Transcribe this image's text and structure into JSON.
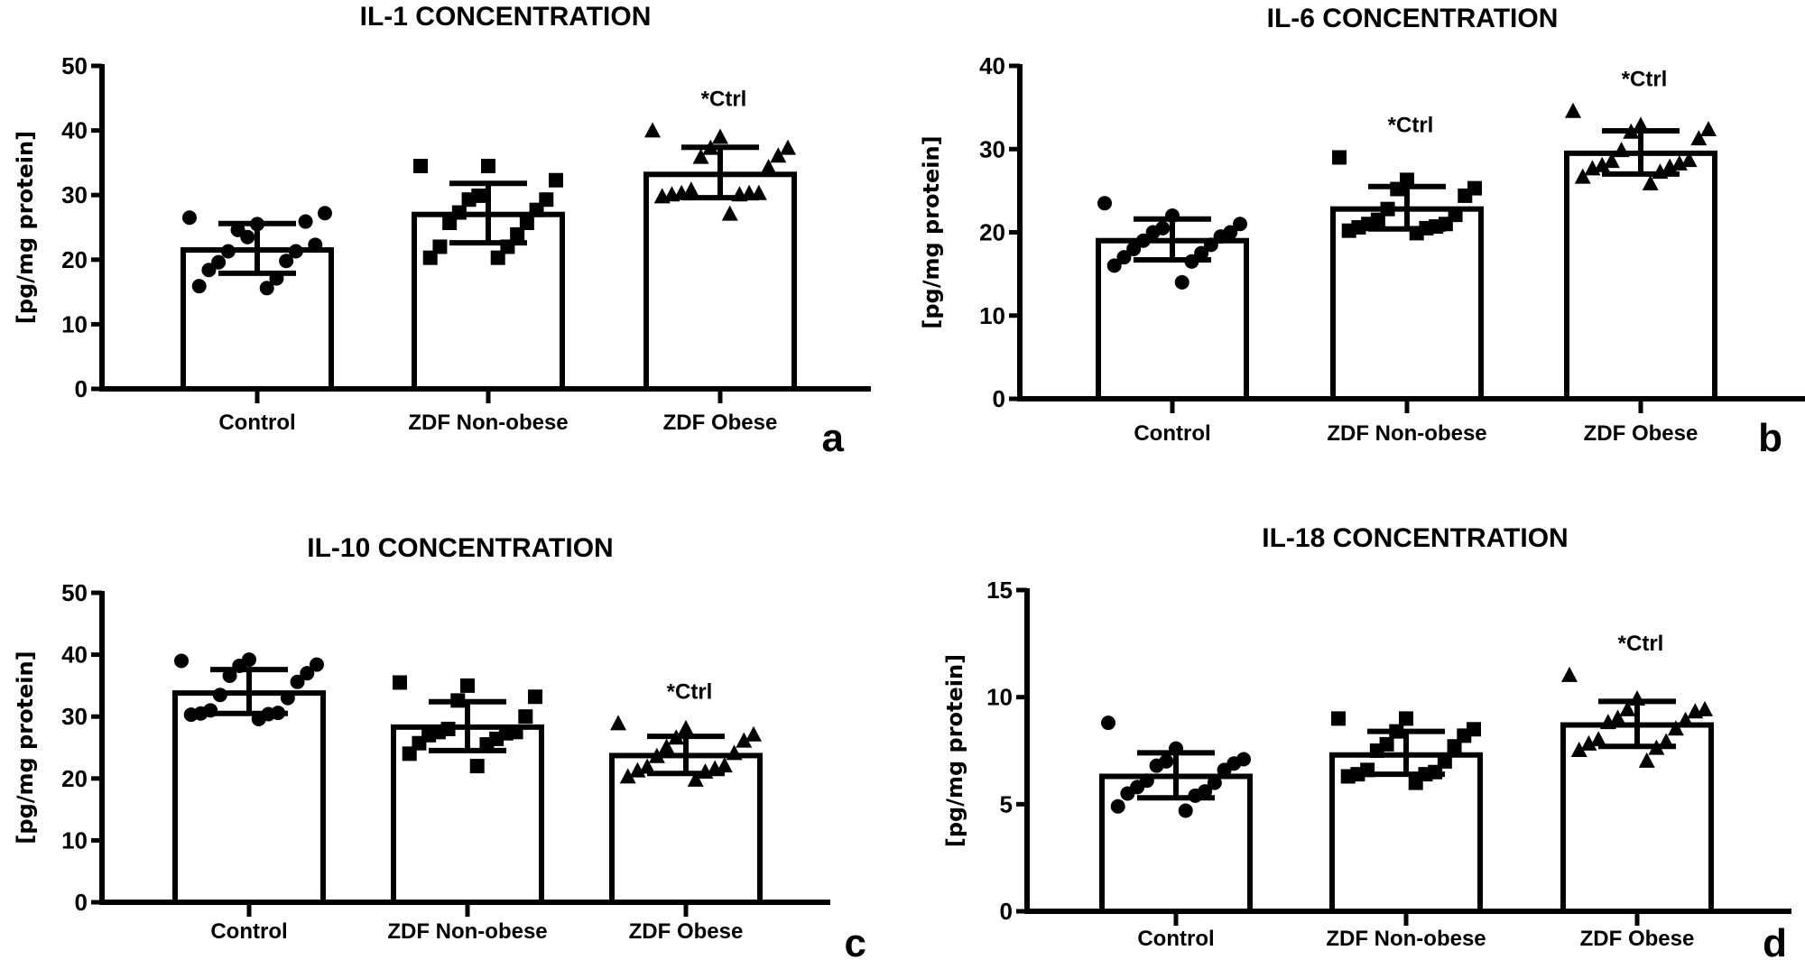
{
  "chart_data": [
    {
      "type": "bar",
      "panel": "a",
      "title": "IL-1 CONCENTRATION",
      "xlabel": "",
      "ylabel": "[pg/mg protein]",
      "ylim": [
        0,
        50
      ],
      "yticks": [
        0,
        10,
        20,
        30,
        40,
        50
      ],
      "categories": [
        "Control",
        "ZDF Non-obese",
        "ZDF Obese"
      ],
      "values": [
        21.5,
        27.0,
        33.2
      ],
      "error_low": [
        17.9,
        22.6,
        29.6
      ],
      "error_high": [
        25.6,
        31.8,
        37.4
      ],
      "markers": [
        "circle",
        "square",
        "triangle"
      ],
      "points": [
        [
          26.5,
          25.5,
          27.2,
          23.5,
          22.3,
          24.6,
          25.9,
          21.3,
          21.3,
          19.6,
          19.8,
          18.4,
          17.1,
          15.9,
          15.6
        ],
        [
          34.5,
          34.5,
          32.3,
          29.9,
          29.3,
          29.3,
          27.7,
          27.3,
          25.7,
          25.7,
          23.9,
          22.0,
          22.0,
          20.3,
          20.3
        ],
        [
          39.9,
          38.9,
          37.2,
          37.2,
          36.0,
          35.8,
          34.2,
          30.7,
          30.2,
          30.2,
          30.2,
          30.0,
          30.0,
          29.7,
          27.0
        ]
      ],
      "annotations": [
        {
          "category": "ZDF Obese",
          "text": "*Ctrl"
        }
      ],
      "grid": false
    },
    {
      "type": "bar",
      "panel": "b",
      "title": "IL-6 CONCENTRATION",
      "xlabel": "",
      "ylabel": "[pg/mg protein]",
      "ylim": [
        0,
        40
      ],
      "yticks": [
        0,
        10,
        20,
        30,
        40
      ],
      "categories": [
        "Control",
        "ZDF Non-obese",
        "ZDF Obese"
      ],
      "values": [
        19.0,
        22.8,
        29.5
      ],
      "error_low": [
        16.7,
        20.4,
        27.0
      ],
      "error_high": [
        21.6,
        25.5,
        32.2
      ],
      "markers": [
        "circle",
        "square",
        "triangle"
      ],
      "points": [
        [
          23.5,
          22.0,
          21.0,
          20.5,
          20.0,
          20.0,
          19.5,
          19.0,
          18.5,
          18.0,
          17.5,
          17.0,
          16.5,
          16.0,
          14.0
        ],
        [
          29.0,
          26.3,
          25.3,
          25.2,
          24.4,
          22.8,
          22.1,
          21.5,
          21.0,
          21.0,
          20.7,
          20.6,
          20.5,
          20.2,
          19.9
        ],
        [
          34.5,
          32.8,
          32.3,
          32.0,
          31.2,
          29.8,
          28.6,
          28.5,
          28.2,
          28.0,
          27.8,
          27.6,
          27.2,
          26.6,
          25.8
        ]
      ],
      "annotations": [
        {
          "category": "ZDF Non-obese",
          "text": "*Ctrl"
        },
        {
          "category": "ZDF Obese",
          "text": "*Ctrl"
        }
      ],
      "grid": false
    },
    {
      "type": "bar",
      "panel": "c",
      "title": "IL-10 CONCENTRATION",
      "xlabel": "",
      "ylabel": "[pg/mg protein]",
      "ylim": [
        0,
        50
      ],
      "yticks": [
        0,
        10,
        20,
        30,
        40,
        50
      ],
      "categories": [
        "Control",
        "ZDF Non-obese",
        "ZDF Obese"
      ],
      "values": [
        33.8,
        28.3,
        23.7
      ],
      "error_low": [
        30.5,
        24.5,
        20.8
      ],
      "error_high": [
        37.6,
        32.4,
        26.8
      ],
      "markers": [
        "circle",
        "square",
        "triangle"
      ],
      "points": [
        [
          39.0,
          39.2,
          38.4,
          38.2,
          37.0,
          36.6,
          35.6,
          33.5,
          33.0,
          31.0,
          30.6,
          30.5,
          30.4,
          30.3,
          29.6
        ],
        [
          35.5,
          35.0,
          33.2,
          32.6,
          30.0,
          28.0,
          27.5,
          27.5,
          27.3,
          27.0,
          26.4,
          25.7,
          25.5,
          24.0,
          22.0
        ],
        [
          28.8,
          28.0,
          27.0,
          26.5,
          26.0,
          25.0,
          24.0,
          23.5,
          22.0,
          21.8,
          21.5,
          21.2,
          21.0,
          20.2,
          19.7
        ]
      ],
      "annotations": [
        {
          "category": "ZDF Obese",
          "text": "*Ctrl"
        }
      ],
      "grid": false
    },
    {
      "type": "bar",
      "panel": "d",
      "title": "IL-18 CONCENTRATION",
      "xlabel": "",
      "ylabel": "[pg/mg protein]",
      "ylim": [
        0,
        15
      ],
      "yticks": [
        0,
        5,
        10,
        15
      ],
      "categories": [
        "Control",
        "ZDF Non-obese",
        "ZDF Obese"
      ],
      "values": [
        6.3,
        7.3,
        8.7
      ],
      "error_low": [
        5.3,
        6.4,
        7.7
      ],
      "error_high": [
        7.4,
        8.4,
        9.8
      ],
      "markers": [
        "circle",
        "square",
        "triangle"
      ],
      "points": [
        [
          8.8,
          7.6,
          7.1,
          7.0,
          6.9,
          6.8,
          6.6,
          6.1,
          6.0,
          5.8,
          5.6,
          5.5,
          5.4,
          4.9,
          4.7
        ],
        [
          9.0,
          9.0,
          8.5,
          8.4,
          8.2,
          7.8,
          7.7,
          7.5,
          7.0,
          6.6,
          6.5,
          6.4,
          6.4,
          6.3,
          6.0
        ],
        [
          11.0,
          9.9,
          9.4,
          9.4,
          9.3,
          9.0,
          8.9,
          8.8,
          8.5,
          8.0,
          7.9,
          7.8,
          7.6,
          7.5,
          7.0
        ]
      ],
      "annotations": [
        {
          "category": "ZDF Obese",
          "text": "*Ctrl"
        }
      ],
      "grid": false
    }
  ]
}
